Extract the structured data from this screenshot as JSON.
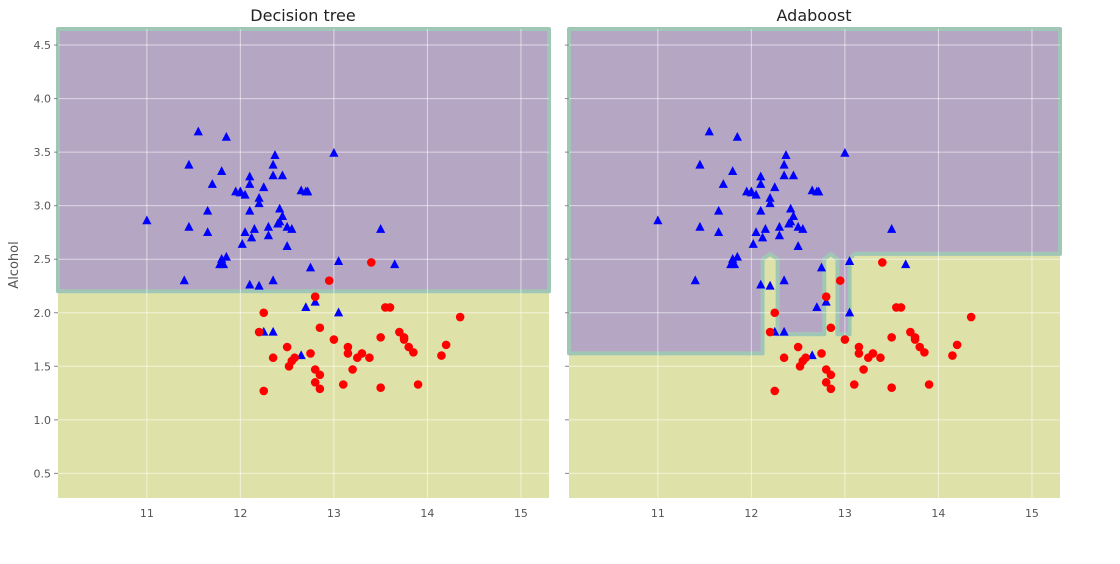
{
  "colors": {
    "region_class0": "#b5a7c4",
    "region_class1": "#dfe2a8",
    "boundary": "#a0c7b5",
    "class0": "#0000ff",
    "class1": "#ff0000",
    "grid": "#ffffff"
  },
  "chart_data": [
    {
      "type": "scatter",
      "title": "Decision tree",
      "xlabel": "",
      "ylabel": "Alcohol",
      "xlim": [
        10.05,
        15.3
      ],
      "ylim": [
        0.27,
        4.65
      ],
      "xticks": [
        11,
        12,
        13,
        14,
        15
      ],
      "yticks": [
        0.5,
        1.0,
        1.5,
        2.0,
        2.5,
        3.0,
        3.5,
        4.0,
        4.5
      ],
      "grid": true,
      "decision_threshold_y": 2.2,
      "decision_regions": [
        {
          "label": "class0",
          "polygon": [
            [
              10.05,
              2.2
            ],
            [
              15.3,
              2.2
            ],
            [
              15.3,
              4.65
            ],
            [
              10.05,
              4.65
            ]
          ]
        }
      ],
      "series": [
        {
          "marker": "triangle",
          "color": "class0",
          "points": [
            [
              11.0,
              2.86
            ],
            [
              11.45,
              2.8
            ],
            [
              11.45,
              3.38
            ],
            [
              11.55,
              3.69
            ],
            [
              11.4,
              2.3
            ],
            [
              11.65,
              2.95
            ],
            [
              11.65,
              2.75
            ],
            [
              11.7,
              3.2
            ],
            [
              11.8,
              3.32
            ],
            [
              11.85,
              3.64
            ],
            [
              11.8,
              2.5
            ],
            [
              11.82,
              2.45
            ],
            [
              11.78,
              2.45
            ],
            [
              11.85,
              2.52
            ],
            [
              11.95,
              3.13
            ],
            [
              12.0,
              3.13
            ],
            [
              12.0,
              3.12
            ],
            [
              12.02,
              2.64
            ],
            [
              12.05,
              2.75
            ],
            [
              12.05,
              3.1
            ],
            [
              12.1,
              3.27
            ],
            [
              12.1,
              3.2
            ],
            [
              12.1,
              2.95
            ],
            [
              12.12,
              2.7
            ],
            [
              12.15,
              2.78
            ],
            [
              12.1,
              2.26
            ],
            [
              12.2,
              2.25
            ],
            [
              12.2,
              3.02
            ],
            [
              12.2,
              3.07
            ],
            [
              12.25,
              3.17
            ],
            [
              12.3,
              2.8
            ],
            [
              12.3,
              2.72
            ],
            [
              12.35,
              2.3
            ],
            [
              12.35,
              3.28
            ],
            [
              12.35,
              3.38
            ],
            [
              12.37,
              3.47
            ],
            [
              12.4,
              2.83
            ],
            [
              12.42,
              2.85
            ],
            [
              12.42,
              2.97
            ],
            [
              12.45,
              3.28
            ],
            [
              12.45,
              2.9
            ],
            [
              12.5,
              2.62
            ],
            [
              12.5,
              2.8
            ],
            [
              12.55,
              2.78
            ],
            [
              12.65,
              3.14
            ],
            [
              12.7,
              3.13
            ],
            [
              12.72,
              3.13
            ],
            [
              12.75,
              2.42
            ],
            [
              12.8,
              2.1
            ],
            [
              13.0,
              3.49
            ],
            [
              13.05,
              2.48
            ],
            [
              13.05,
              2.0
            ],
            [
              13.5,
              2.78
            ],
            [
              13.65,
              2.45
            ],
            [
              12.25,
              1.82
            ],
            [
              12.35,
              1.82
            ],
            [
              12.7,
              2.05
            ],
            [
              12.65,
              1.6
            ]
          ]
        },
        {
          "marker": "circle",
          "color": "class1",
          "points": [
            [
              12.2,
              1.82
            ],
            [
              12.25,
              2.0
            ],
            [
              12.25,
              1.27
            ],
            [
              12.35,
              1.58
            ],
            [
              12.52,
              1.5
            ],
            [
              12.55,
              1.55
            ],
            [
              12.58,
              1.58
            ],
            [
              12.5,
              1.68
            ],
            [
              12.75,
              1.62
            ],
            [
              12.8,
              1.47
            ],
            [
              12.8,
              1.35
            ],
            [
              12.85,
              1.42
            ],
            [
              12.85,
              1.29
            ],
            [
              12.85,
              1.86
            ],
            [
              12.8,
              2.15
            ],
            [
              12.95,
              2.3
            ],
            [
              13.0,
              1.75
            ],
            [
              13.1,
              1.33
            ],
            [
              13.15,
              1.68
            ],
            [
              13.15,
              1.62
            ],
            [
              13.2,
              1.47
            ],
            [
              13.25,
              1.58
            ],
            [
              13.3,
              1.62
            ],
            [
              13.38,
              1.58
            ],
            [
              13.4,
              2.47
            ],
            [
              13.5,
              1.3
            ],
            [
              13.5,
              1.77
            ],
            [
              13.55,
              2.05
            ],
            [
              13.6,
              2.05
            ],
            [
              13.7,
              1.82
            ],
            [
              13.75,
              1.75
            ],
            [
              13.75,
              1.77
            ],
            [
              13.8,
              1.68
            ],
            [
              13.85,
              1.63
            ],
            [
              13.9,
              1.33
            ],
            [
              14.15,
              1.6
            ],
            [
              14.2,
              1.7
            ],
            [
              14.35,
              1.96
            ]
          ]
        }
      ]
    },
    {
      "type": "scatter",
      "title": "Adaboost",
      "xlabel": "",
      "ylabel": "",
      "xlim": [
        10.05,
        15.3
      ],
      "ylim": [
        0.27,
        4.65
      ],
      "xticks": [
        11,
        12,
        13,
        14,
        15
      ],
      "yticks": [
        0.5,
        1.0,
        1.5,
        2.0,
        2.5,
        3.0,
        3.5,
        4.0,
        4.5
      ],
      "grid": true,
      "decision_regions": [
        {
          "label": "class0",
          "polygon": [
            [
              10.05,
              1.62
            ],
            [
              12.12,
              1.62
            ],
            [
              12.12,
              2.5
            ],
            [
              12.2,
              2.55
            ],
            [
              12.28,
              2.5
            ],
            [
              12.28,
              1.8
            ],
            [
              12.78,
              1.8
            ],
            [
              12.78,
              2.5
            ],
            [
              12.85,
              2.55
            ],
            [
              12.92,
              2.5
            ],
            [
              12.92,
              1.8
            ],
            [
              13.05,
              1.8
            ],
            [
              13.05,
              2.5
            ],
            [
              13.1,
              2.55
            ],
            [
              15.3,
              2.55
            ],
            [
              15.3,
              4.65
            ],
            [
              10.05,
              4.65
            ]
          ]
        }
      ],
      "series": [
        {
          "marker": "triangle",
          "color": "class0",
          "points": [
            [
              11.0,
              2.86
            ],
            [
              11.45,
              2.8
            ],
            [
              11.45,
              3.38
            ],
            [
              11.55,
              3.69
            ],
            [
              11.4,
              2.3
            ],
            [
              11.65,
              2.95
            ],
            [
              11.65,
              2.75
            ],
            [
              11.7,
              3.2
            ],
            [
              11.8,
              3.32
            ],
            [
              11.85,
              3.64
            ],
            [
              11.8,
              2.5
            ],
            [
              11.82,
              2.45
            ],
            [
              11.78,
              2.45
            ],
            [
              11.85,
              2.52
            ],
            [
              11.95,
              3.13
            ],
            [
              12.0,
              3.13
            ],
            [
              12.0,
              3.12
            ],
            [
              12.02,
              2.64
            ],
            [
              12.05,
              2.75
            ],
            [
              12.05,
              3.1
            ],
            [
              12.1,
              3.27
            ],
            [
              12.1,
              3.2
            ],
            [
              12.1,
              2.95
            ],
            [
              12.12,
              2.7
            ],
            [
              12.15,
              2.78
            ],
            [
              12.1,
              2.26
            ],
            [
              12.2,
              2.25
            ],
            [
              12.2,
              3.02
            ],
            [
              12.2,
              3.07
            ],
            [
              12.25,
              3.17
            ],
            [
              12.3,
              2.8
            ],
            [
              12.3,
              2.72
            ],
            [
              12.35,
              2.3
            ],
            [
              12.35,
              3.28
            ],
            [
              12.35,
              3.38
            ],
            [
              12.37,
              3.47
            ],
            [
              12.4,
              2.83
            ],
            [
              12.42,
              2.85
            ],
            [
              12.42,
              2.97
            ],
            [
              12.45,
              3.28
            ],
            [
              12.45,
              2.9
            ],
            [
              12.5,
              2.62
            ],
            [
              12.5,
              2.8
            ],
            [
              12.55,
              2.78
            ],
            [
              12.65,
              3.14
            ],
            [
              12.7,
              3.13
            ],
            [
              12.72,
              3.13
            ],
            [
              12.75,
              2.42
            ],
            [
              12.8,
              2.1
            ],
            [
              13.0,
              3.49
            ],
            [
              13.05,
              2.48
            ],
            [
              13.05,
              2.0
            ],
            [
              13.5,
              2.78
            ],
            [
              13.65,
              2.45
            ],
            [
              12.25,
              1.82
            ],
            [
              12.35,
              1.82
            ],
            [
              12.7,
              2.05
            ],
            [
              12.65,
              1.6
            ]
          ]
        },
        {
          "marker": "circle",
          "color": "class1",
          "points": [
            [
              12.2,
              1.82
            ],
            [
              12.25,
              2.0
            ],
            [
              12.25,
              1.27
            ],
            [
              12.35,
              1.58
            ],
            [
              12.52,
              1.5
            ],
            [
              12.55,
              1.55
            ],
            [
              12.58,
              1.58
            ],
            [
              12.5,
              1.68
            ],
            [
              12.75,
              1.62
            ],
            [
              12.8,
              1.47
            ],
            [
              12.8,
              1.35
            ],
            [
              12.85,
              1.42
            ],
            [
              12.85,
              1.29
            ],
            [
              12.85,
              1.86
            ],
            [
              12.8,
              2.15
            ],
            [
              12.95,
              2.3
            ],
            [
              13.0,
              1.75
            ],
            [
              13.1,
              1.33
            ],
            [
              13.15,
              1.68
            ],
            [
              13.15,
              1.62
            ],
            [
              13.2,
              1.47
            ],
            [
              13.25,
              1.58
            ],
            [
              13.3,
              1.62
            ],
            [
              13.38,
              1.58
            ],
            [
              13.4,
              2.47
            ],
            [
              13.5,
              1.3
            ],
            [
              13.5,
              1.77
            ],
            [
              13.55,
              2.05
            ],
            [
              13.6,
              2.05
            ],
            [
              13.7,
              1.82
            ],
            [
              13.75,
              1.75
            ],
            [
              13.75,
              1.77
            ],
            [
              13.8,
              1.68
            ],
            [
              13.85,
              1.63
            ],
            [
              13.9,
              1.33
            ],
            [
              14.15,
              1.6
            ],
            [
              14.2,
              1.7
            ],
            [
              14.35,
              1.96
            ]
          ]
        }
      ]
    }
  ]
}
